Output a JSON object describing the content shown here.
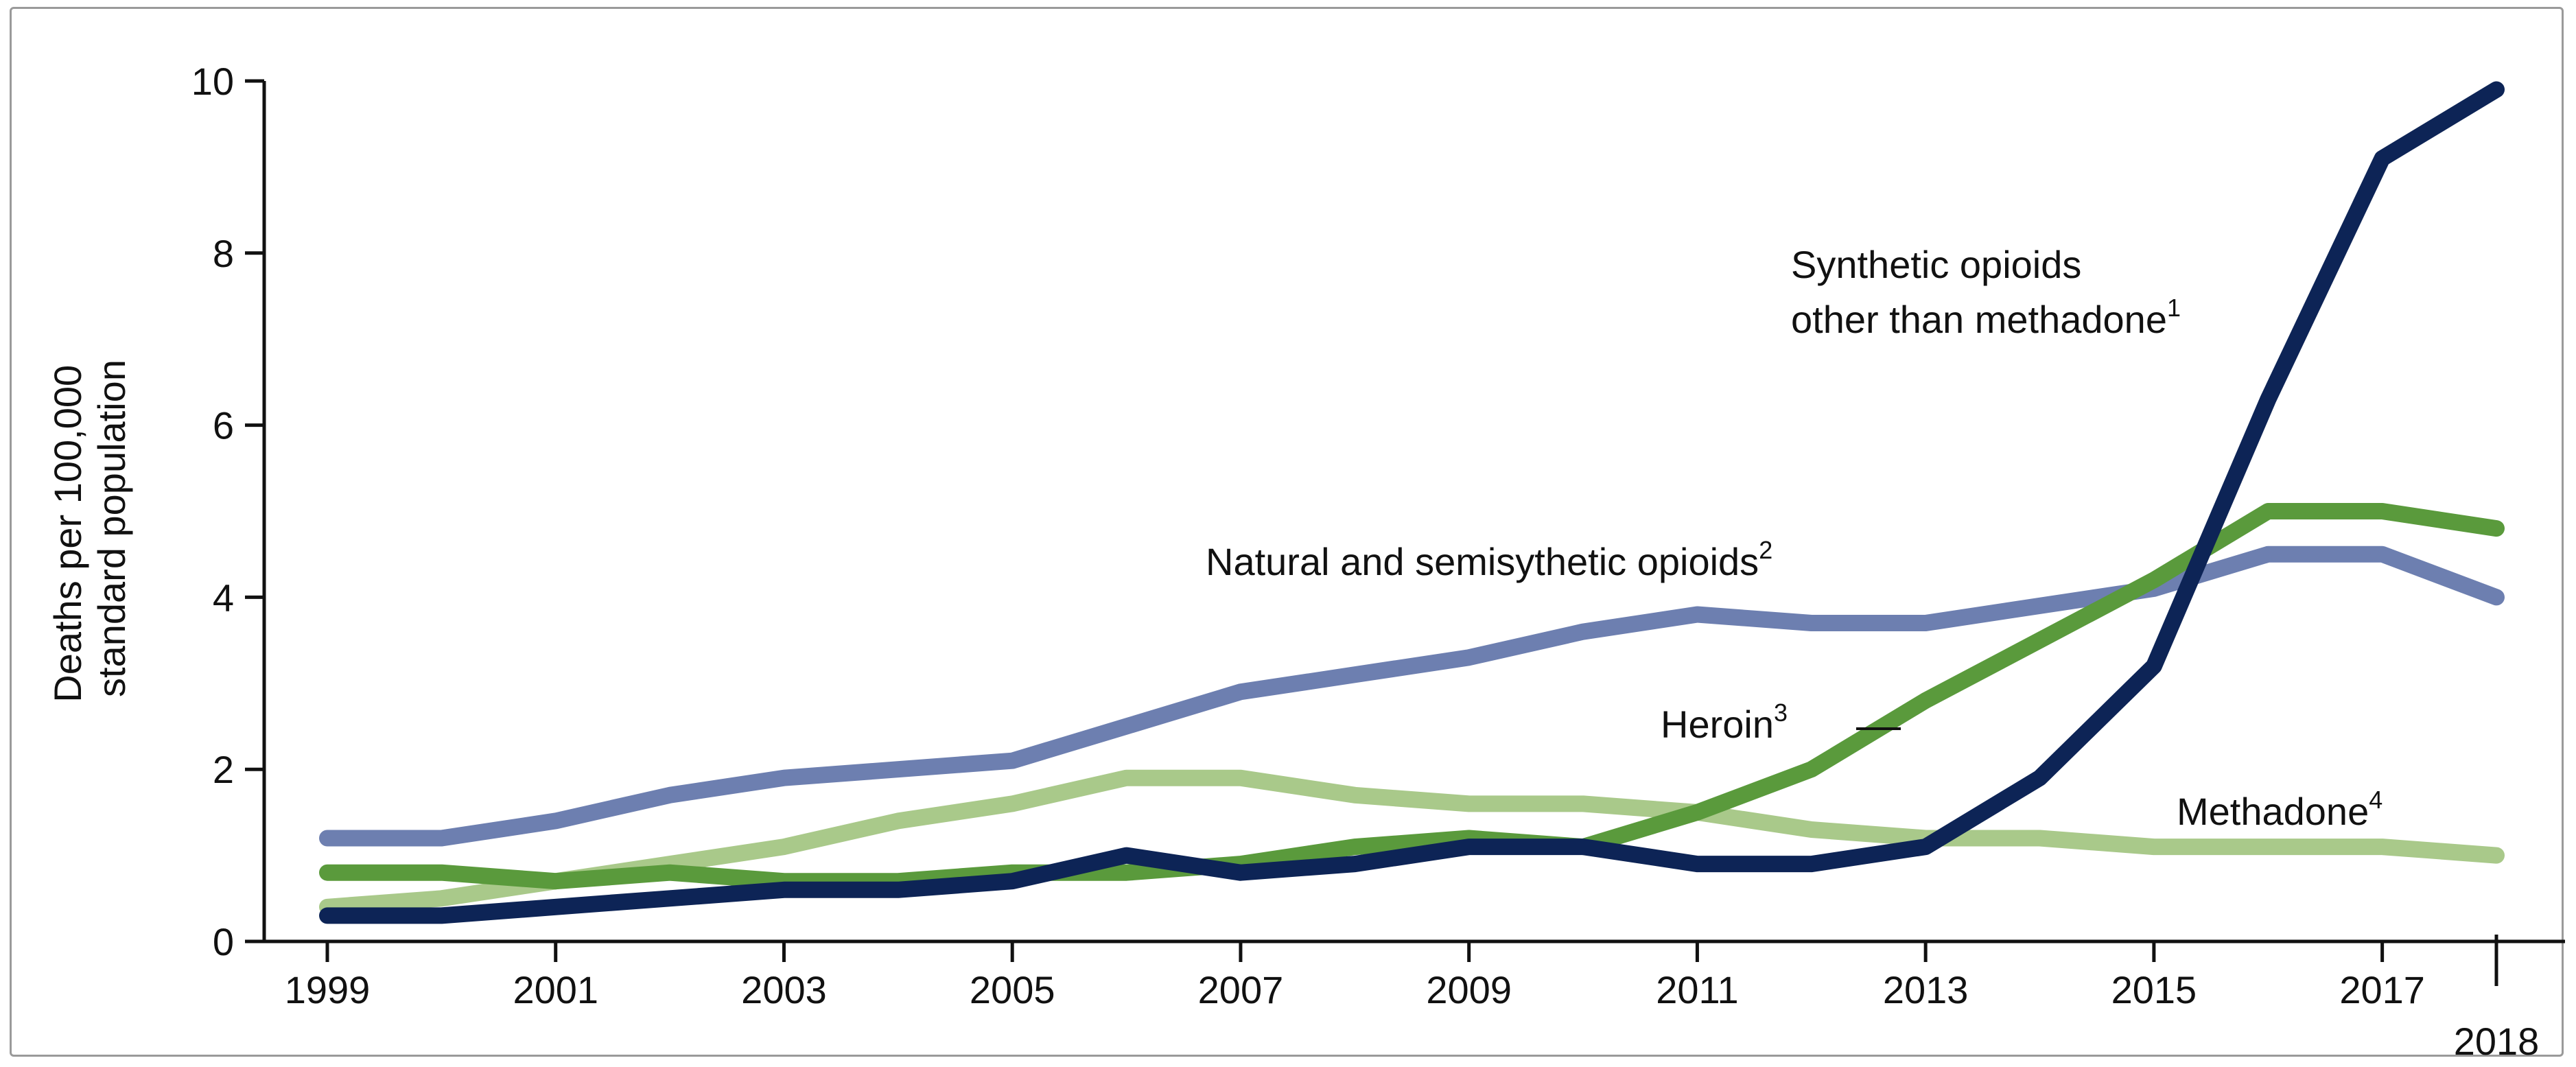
{
  "chart_data": {
    "type": "line",
    "title": "",
    "ylabel_line1": "Deaths per 100,000",
    "ylabel_line2": "standard population",
    "xlabel": "",
    "ylim": [
      0,
      10
    ],
    "yticks": [
      0,
      2,
      4,
      6,
      8,
      10
    ],
    "xlim": [
      1999,
      2018
    ],
    "xticks": [
      "1999",
      "2001",
      "2003",
      "2005",
      "2007",
      "2009",
      "2011",
      "2013",
      "2015",
      "2017"
    ],
    "xtick_extra": "2018",
    "grid": false,
    "x": [
      1999,
      2000,
      2001,
      2002,
      2003,
      2004,
      2005,
      2006,
      2007,
      2008,
      2009,
      2010,
      2011,
      2012,
      2013,
      2014,
      2015,
      2016,
      2017,
      2018
    ],
    "series": [
      {
        "key": "synthetic",
        "color": "#0d2456",
        "label_lines": [
          "Synthetic opioids",
          "other than methadone"
        ],
        "label_sup": "1",
        "values": [
          0.3,
          0.3,
          0.4,
          0.5,
          0.6,
          0.6,
          0.7,
          1.0,
          0.8,
          0.9,
          1.1,
          1.1,
          0.9,
          0.9,
          1.1,
          1.9,
          3.2,
          6.3,
          9.1,
          9.9
        ]
      },
      {
        "key": "natural",
        "color": "#6d7fb0",
        "label_lines": [
          "Natural and semisythetic opioids"
        ],
        "label_sup": "2",
        "values": [
          1.2,
          1.2,
          1.4,
          1.7,
          1.9,
          2.0,
          2.1,
          2.5,
          2.9,
          3.1,
          3.3,
          3.6,
          3.8,
          3.7,
          3.7,
          3.9,
          4.1,
          4.5,
          4.5,
          4.0
        ]
      },
      {
        "key": "heroin",
        "color": "#5a9a3c",
        "label_lines": [
          "Heroin"
        ],
        "label_sup": "3",
        "values": [
          0.8,
          0.8,
          0.7,
          0.8,
          0.7,
          0.7,
          0.8,
          0.8,
          0.9,
          1.1,
          1.2,
          1.1,
          1.5,
          2.0,
          2.8,
          3.5,
          4.2,
          5.0,
          5.0,
          4.8
        ]
      },
      {
        "key": "methadone",
        "color": "#a9c98a",
        "label_lines": [
          "Methadone"
        ],
        "label_sup": "4",
        "values": [
          0.4,
          0.5,
          0.7,
          0.9,
          1.1,
          1.4,
          1.6,
          1.9,
          1.9,
          1.7,
          1.6,
          1.6,
          1.5,
          1.3,
          1.2,
          1.2,
          1.1,
          1.1,
          1.1,
          1.0
        ]
      }
    ]
  }
}
